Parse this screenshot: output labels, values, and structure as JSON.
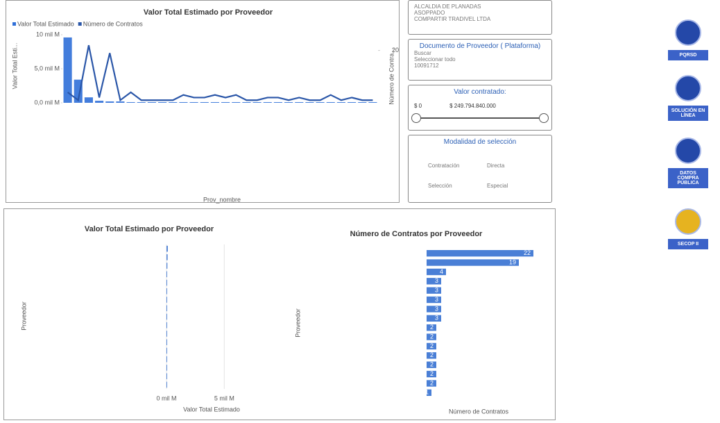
{
  "chart_data": [
    {
      "type": "combo",
      "title": "Valor Total Estimado por Proveedor",
      "x_label": "Prov_nombre",
      "y_label": "Valor Total Esti...",
      "y2_label": "Número de Contra...",
      "categories": [
        null,
        null,
        null,
        null,
        null,
        null,
        null,
        null,
        null,
        null,
        null,
        null,
        null,
        null,
        null,
        null,
        null,
        null,
        null,
        null,
        null,
        null,
        null,
        null,
        null,
        null,
        null,
        null,
        null,
        null
      ],
      "ylim": [
        0,
        10
      ],
      "yticks": [
        {
          "value": 0,
          "label": "0,0 mil M"
        },
        {
          "value": 5,
          "label": "5,0 mil M"
        },
        {
          "value": 10,
          "label": "10 mil M"
        }
      ],
      "y2lim": [
        0,
        26
      ],
      "y2ticks": [
        20
      ],
      "series": [
        {
          "name": "Valor Total Estimado",
          "color": "#2f6fd8",
          "kind": "bar",
          "values": [
            9.6,
            3.4,
            0.8,
            0.3,
            0.2,
            0.2,
            0.1,
            0.1,
            0.1,
            0.1,
            0.1,
            0.1,
            0.1,
            0.1,
            0.1,
            0.1,
            0.1,
            0.1,
            0.1,
            0.1,
            0.1,
            0.1,
            0.1,
            0.1,
            0.1,
            0.1,
            0.1,
            0.1,
            0.1,
            0.1
          ]
        },
        {
          "name": "Número de Contratos",
          "color": "#2a56a8",
          "kind": "line",
          "axis": "y2",
          "values": [
            4,
            1,
            22,
            2,
            19,
            1,
            4,
            1,
            1,
            1,
            1,
            3,
            2,
            2,
            3,
            2,
            3,
            1,
            1,
            2,
            2,
            1,
            2,
            1,
            1,
            3,
            1,
            2,
            1,
            1
          ]
        }
      ]
    },
    {
      "type": "hbar",
      "title": "Valor Total Estimado por Proveedor",
      "x_label": "Valor Total Estimado",
      "y_label": "Proveedor",
      "categories": [
        null,
        null,
        null,
        null,
        null,
        null,
        null,
        null,
        null,
        null,
        null,
        null,
        null,
        null,
        null,
        null,
        null
      ],
      "values": [
        0.12,
        0.1,
        0.08,
        0.06,
        0.05,
        0.05,
        0.05,
        0.04,
        0.04,
        0.04,
        0.03,
        0.03,
        0.03,
        0.03,
        0.03,
        0.02,
        0.02
      ],
      "color": "#5b8ad8",
      "xlim": [
        0,
        9
      ],
      "xticks": [
        {
          "value": 0,
          "label": "0 mil M"
        },
        {
          "value": 5,
          "label": "5 mil M"
        }
      ]
    },
    {
      "type": "hbar",
      "title": "Número de Contratos por Proveedor",
      "x_label": "Número de Contratos",
      "y_label": "Proveedor",
      "categories": [
        null,
        null,
        null,
        null,
        null,
        null,
        null,
        null,
        null,
        null,
        null,
        null,
        null,
        null,
        null,
        null
      ],
      "values": [
        22,
        19,
        4,
        3,
        3,
        3,
        3,
        3,
        2,
        2,
        2,
        2,
        2,
        2,
        2,
        1
      ],
      "color": "#4a7fd6",
      "xlim": [
        0,
        25
      ],
      "data_labels": true
    }
  ],
  "slicers": {
    "providers": [
      "ALCALDIA DE PLANADAS",
      "ASOPPADO",
      "COMPARTIR TRADIVEL LTDA"
    ],
    "document_title": "Documento de Proveedor ( Plataforma)",
    "search": "Buscar",
    "select_all": "Seleccionar todo",
    "document_first": "10091712",
    "value_title": "Valor contratado:",
    "value_min": "$ 0",
    "value_max": "$ 249.794.840.000",
    "modality_title": "Modalidad de selección",
    "modalities": [
      "Contratación",
      "Directa",
      "Selección",
      "Especial"
    ]
  },
  "nav_buttons": [
    "PQRSD",
    "SOLUCIÓN EN LÍNEA",
    "DATOS COMPRA PÚBLICA",
    "SECOP II"
  ]
}
